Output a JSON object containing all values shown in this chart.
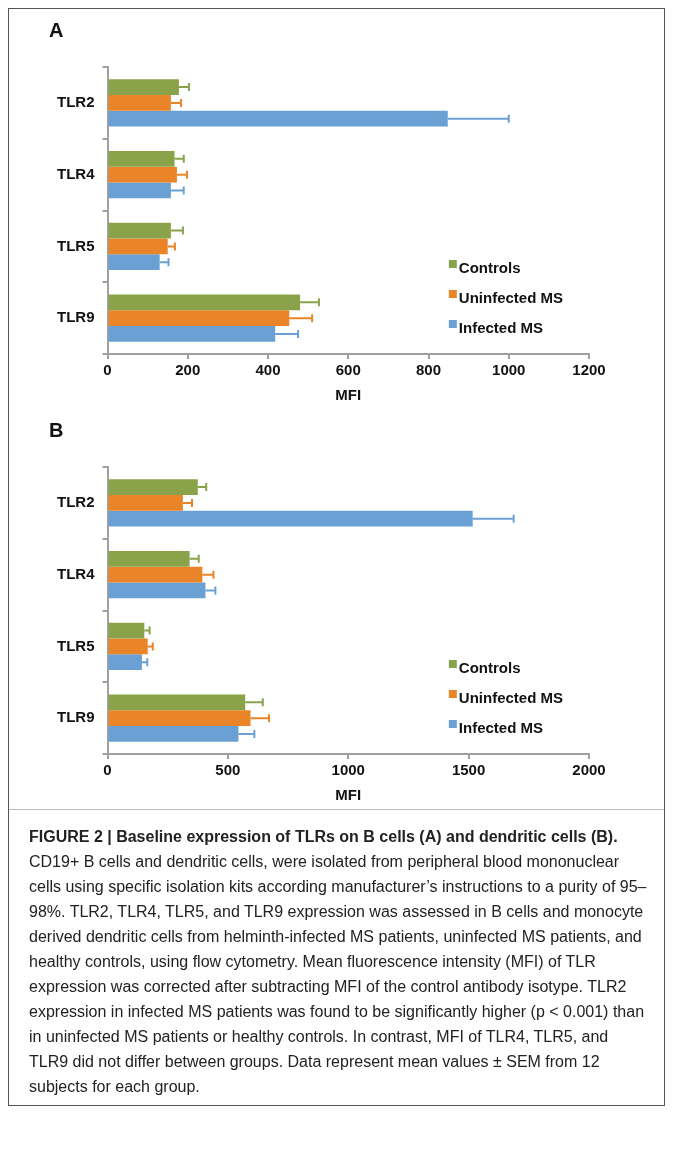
{
  "chart_data": [
    {
      "type": "bar",
      "title": "A",
      "orientation": "horizontal",
      "categories": [
        "TLR2",
        "TLR4",
        "TLR5",
        "TLR9"
      ],
      "xlabel": "MFI",
      "xlim": [
        0,
        1200
      ],
      "xticks": [
        0,
        200,
        400,
        600,
        800,
        1000,
        1200
      ],
      "grid": false,
      "legend": "bottom right",
      "series": [
        {
          "name": "Controls",
          "color": "#8aa34a",
          "values": [
            178,
            167,
            158,
            480
          ],
          "errors": [
            25,
            23,
            30,
            47
          ]
        },
        {
          "name": "Uninfected MS",
          "color": "#ea8428",
          "values": [
            158,
            173,
            150,
            453
          ],
          "errors": [
            25,
            25,
            18,
            57
          ]
        },
        {
          "name": "Infected MS",
          "color": "#6aa0d4",
          "values": [
            848,
            158,
            130,
            418
          ],
          "errors": [
            152,
            32,
            22,
            57
          ]
        }
      ]
    },
    {
      "type": "bar",
      "title": "B",
      "orientation": "horizontal",
      "categories": [
        "TLR2",
        "TLR4",
        "TLR5",
        "TLR9"
      ],
      "xlabel": "MFI",
      "xlim": [
        0,
        2000
      ],
      "xticks": [
        0,
        500,
        1000,
        1500,
        2000
      ],
      "grid": false,
      "legend": "bottom right",
      "series": [
        {
          "name": "Controls",
          "color": "#8aa34a",
          "values": [
            375,
            341,
            153,
            572
          ],
          "errors": [
            35,
            38,
            22,
            73
          ]
        },
        {
          "name": "Uninfected MS",
          "color": "#ea8428",
          "values": [
            313,
            394,
            167,
            594
          ],
          "errors": [
            38,
            46,
            21,
            77
          ]
        },
        {
          "name": "Infected MS",
          "color": "#6aa0d4",
          "values": [
            1517,
            407,
            143,
            544
          ],
          "errors": [
            170,
            41,
            22,
            66
          ]
        }
      ]
    },
    {
      "type": "other",
      "annotations": [
        "FIGURE 2 | Baseline expression of TLRs on B cells (A) and dendritic cells (B).",
        "CD19+ B cells and dendritic cells, were isolated from peripheral blood mononuclear cells using specific isolation kits according manufacturer’s instructions to a purity of 95–98%. TLR2, TLR4, TLR5, and TLR9 expression was assessed in B cells and monocyte derived dendritic cells from helminth-infected MS patients, uninfected MS patients, and healthy controls, using flow cytometry. Mean fluorescence intensity (MFI) of TLR expression was corrected after subtracting MFI of the control antibody isotype. TLR2 expression in infected MS patients was found to be significantly higher (p < 0.001) than in uninfected MS patients or healthy controls. In contrast, MFI of TLR4, TLR5, and TLR9 did not differ between groups. Data represent mean values ± SEM from 12 subjects for each group."
      ]
    }
  ]
}
